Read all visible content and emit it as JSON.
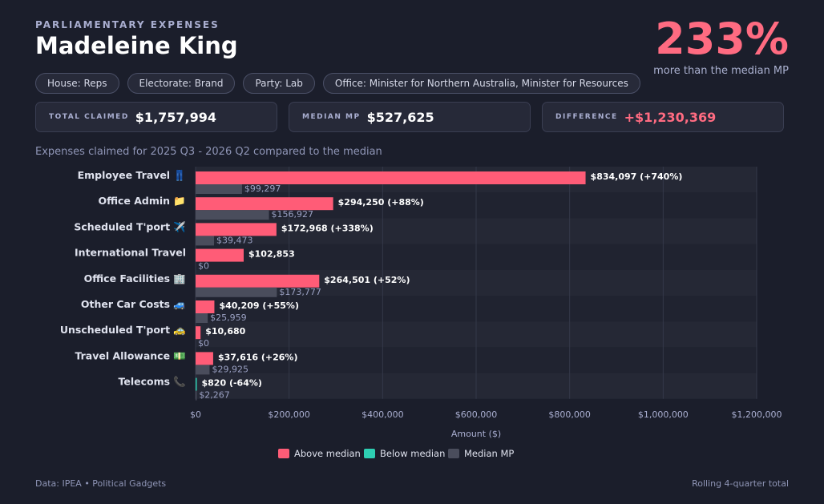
{
  "header": {
    "kicker": "PARLIAMENTARY EXPENSES",
    "name": "Madeleine King",
    "pct": "233%",
    "pct_caption": "more than the median MP"
  },
  "pills": [
    "House: Reps",
    "Electorate: Brand",
    "Party: Lab",
    "Office: Minister for Northern Australia, Minister for Resources"
  ],
  "stats": {
    "total": {
      "label": "TOTAL CLAIMED",
      "value": "$1,757,994"
    },
    "median": {
      "label": "MEDIAN MP",
      "value": "$527,625"
    },
    "difference": {
      "label": "DIFFERENCE",
      "value": "+$1,230,369"
    }
  },
  "caption": "Expenses claimed for 2025 Q3 - 2026 Q2 compared to the median",
  "footer": {
    "source": "Data: IPEA • Political Gadgets",
    "note": "Rolling 4-quarter total"
  },
  "colors": {
    "above": "#ff5c77",
    "below": "#2ecfb3",
    "median": "#4a4d5c"
  },
  "chart_data": {
    "type": "bar",
    "orientation": "horizontal",
    "categories": [
      "Employee Travel 👖",
      "Office Admin 📁",
      "Scheduled T'port ✈️",
      "International Travel",
      "Office Facilities 🏢",
      "Other Car Costs 🚙",
      "Unscheduled T'port 🚕",
      "Travel Allowance 💵",
      "Telecoms 📞"
    ],
    "series": [
      {
        "name": "Above median",
        "values": [
          834097,
          294250,
          172968,
          102853,
          264501,
          40209,
          10680,
          37616,
          null
        ]
      },
      {
        "name": "Below median",
        "values": [
          null,
          null,
          null,
          null,
          null,
          null,
          null,
          null,
          820
        ]
      },
      {
        "name": "Median MP",
        "values": [
          99297,
          156927,
          39473,
          0,
          173777,
          25959,
          0,
          29925,
          2267
        ]
      }
    ],
    "value_labels": [
      "$834,097 (+740%)",
      "$294,250 (+88%)",
      "$172,968 (+338%)",
      "$102,853",
      "$264,501 (+52%)",
      "$40,209 (+55%)",
      "$10,680",
      "$37,616 (+26%)",
      "$820 (-64%)"
    ],
    "median_labels": [
      "$99,297",
      "$156,927",
      "$39,473",
      "$0",
      "$173,777",
      "$25,959",
      "$0",
      "$29,925",
      "$2,267"
    ],
    "xlabel": "Amount ($)",
    "xlim": [
      0,
      1200000
    ],
    "xticks": [
      0,
      200000,
      400000,
      600000,
      800000,
      1000000,
      1200000
    ],
    "xtick_labels": [
      "$0",
      "$200,000",
      "$400,000",
      "$600,000",
      "$800,000",
      "$1,000,000",
      "$1,200,000"
    ],
    "legend": [
      "Above median",
      "Below median",
      "Median MP"
    ],
    "legend_position": "bottom",
    "grid": true
  }
}
